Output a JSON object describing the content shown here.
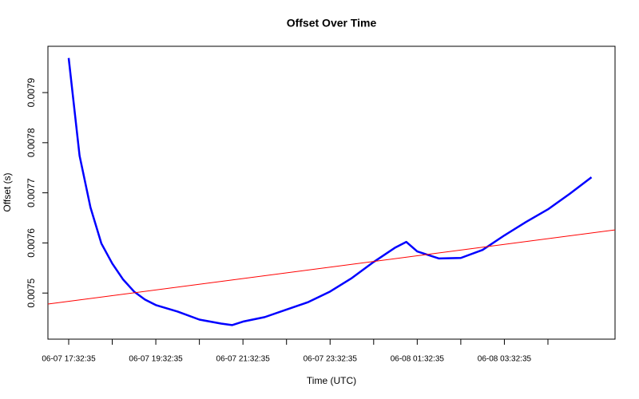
{
  "chart_data": {
    "type": "line",
    "title": "Offset Over Time",
    "x_label": "Time (UTC)",
    "y_label": "Offset (s)",
    "xlim": [
      "06-07 17:04:00",
      "06-08 06:05:00"
    ],
    "ylim": [
      0.007408,
      0.0079924
    ],
    "xticks": [
      "06-07 17:32:35",
      {
        "value": "06-07 18:32:35",
        "label": null
      },
      "06-07 19:32:35",
      {
        "value": "06-07 20:32:35",
        "label": null
      },
      "06-07 21:32:35",
      {
        "value": "06-07 22:32:35",
        "label": null
      },
      "06-07 23:32:35",
      {
        "value": "06-08 00:32:35",
        "label": null
      },
      "06-08 01:32:35",
      {
        "value": "06-08 02:32:35",
        "label": null
      },
      "06-08 03:32:35",
      {
        "value": "06-08 04:32:35",
        "label": null
      }
    ],
    "yticks": [
      0.0075,
      0.0076,
      0.0077,
      0.0078,
      0.0079
    ],
    "series": [
      {
        "color": "#0000ff",
        "x": [
          "06-07 17:32:35",
          "06-07 17:47:35",
          "06-07 18:02:35",
          "06-07 18:17:35",
          "06-07 18:32:35",
          "06-07 18:47:35",
          "06-07 19:02:35",
          "06-07 19:17:35",
          "06-07 19:32:35",
          "06-07 20:02:35",
          "06-07 20:32:35",
          "06-07 21:02:35",
          "06-07 21:17:35",
          "06-07 21:32:35",
          "06-07 22:02:35",
          "06-07 22:32:35",
          "06-07 23:02:35",
          "06-07 23:32:35",
          "06-08 00:02:35",
          "06-08 00:32:35",
          "06-08 01:02:35",
          "06-08 01:17:35",
          "06-08 01:32:35",
          "06-08 02:02:35",
          "06-08 02:32:35",
          "06-08 03:02:35",
          "06-08 03:32:35",
          "06-08 04:02:35",
          "06-08 04:32:35",
          "06-08 05:02:35",
          "06-08 05:32:35"
        ],
        "values": [
          0.007969,
          0.007774,
          0.007671,
          0.007599,
          0.007559,
          0.007527,
          0.007503,
          0.007487,
          0.007476,
          0.007463,
          0.007447,
          0.007439,
          0.007436,
          0.007443,
          0.007452,
          0.007467,
          0.007482,
          0.007503,
          0.00753,
          0.007562,
          0.007591,
          0.007602,
          0.007583,
          0.007569,
          0.00757,
          0.007586,
          0.007615,
          0.007642,
          0.007667,
          0.007698,
          0.007731
        ]
      },
      {
        "color": "#ff0000",
        "x": [
          "06-07 17:04:00",
          "06-08 06:05:00"
        ],
        "values": [
          0.007478,
          0.007626
        ]
      }
    ]
  }
}
